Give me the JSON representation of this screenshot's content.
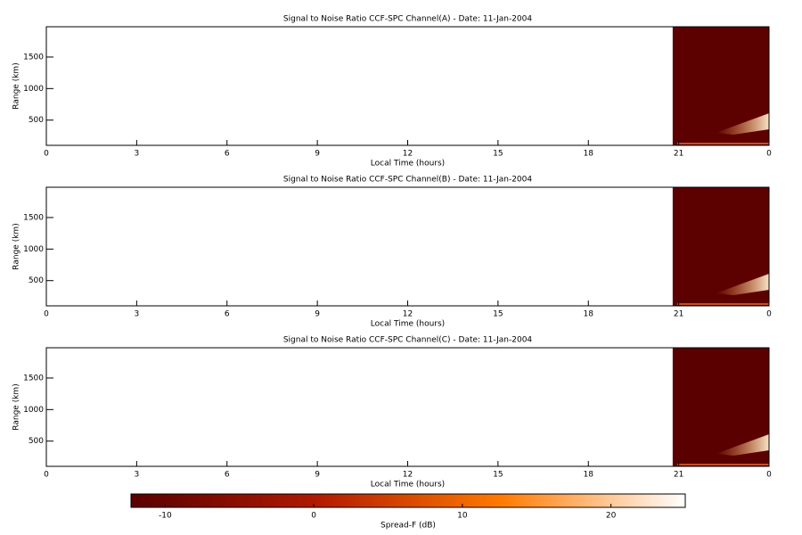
{
  "chart_data": [
    {
      "type": "heatmap",
      "title": "Signal to Noise Ratio CCF-SPC Channel(A) - Date: 11-Jan-2004",
      "xlabel": "Local Time (hours)",
      "ylabel": "Range (km)",
      "xlim": [
        0,
        24
      ],
      "xticks": [
        0,
        3,
        6,
        9,
        12,
        15,
        18,
        21,
        {
          "value": 24,
          "label": "0"
        }
      ],
      "ylim": [
        100,
        1980
      ],
      "yticks": [
        500,
        1000,
        1500
      ],
      "x": [
        20.8,
        24
      ],
      "value": -12
    },
    {
      "type": "heatmap",
      "title": "Signal to Noise Ratio CCF-SPC Channel(B) - Date: 11-Jan-2004",
      "xlabel": "Local Time (hours)",
      "ylabel": "Range (km)",
      "xlim": [
        0,
        24
      ],
      "xticks": [
        0,
        3,
        6,
        9,
        12,
        15,
        18,
        21,
        {
          "value": 24,
          "label": "0"
        }
      ],
      "ylim": [
        100,
        1980
      ],
      "yticks": [
        500,
        1000,
        1500
      ],
      "x": [
        20.8,
        24
      ],
      "value": -12
    },
    {
      "type": "heatmap",
      "title": "Signal to Noise Ratio CCF-SPC Channel(C) - Date: 11-Jan-2004",
      "xlabel": "Local Time (hours)",
      "ylabel": "Range (km)",
      "xlim": [
        0,
        24
      ],
      "xticks": [
        0,
        3,
        6,
        9,
        12,
        15,
        18,
        21,
        {
          "value": 24,
          "label": "0"
        }
      ],
      "ylim": [
        100,
        1980
      ],
      "yticks": [
        500,
        1000,
        1500
      ],
      "x": [
        20.8,
        24
      ],
      "value": -12.3
    }
  ],
  "colorbar": {
    "label": "Spread-F (dB)",
    "lim": [
      -12.3,
      25
    ],
    "ticks": [
      -10,
      0,
      10,
      20
    ],
    "colormap": [
      "#5a0000",
      "#b01a00",
      "#ff7a00",
      "#ffffff"
    ]
  }
}
